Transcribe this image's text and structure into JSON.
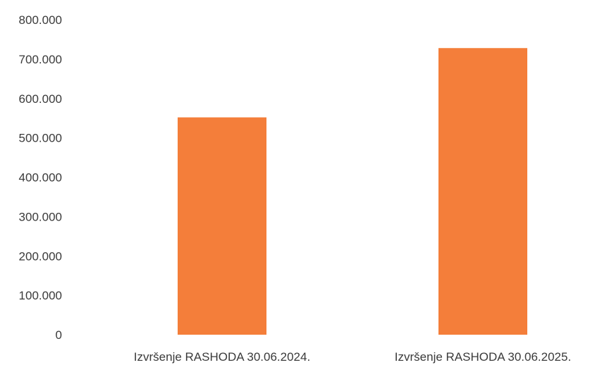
{
  "chart_data": {
    "type": "bar",
    "categories": [
      "Izvršenje RASHODA 30.06.2024.",
      "Izvršenje RASHODA 30.06.2025."
    ],
    "values": [
      552000,
      728000
    ],
    "ylim": [
      0,
      800000
    ],
    "yticks": [
      "0",
      "100.000",
      "200.000",
      "300.000",
      "400.000",
      "500.000",
      "600.000",
      "700.000",
      "800.000"
    ],
    "grid": false,
    "legend": "none",
    "bar_color": "#F47E3A"
  }
}
